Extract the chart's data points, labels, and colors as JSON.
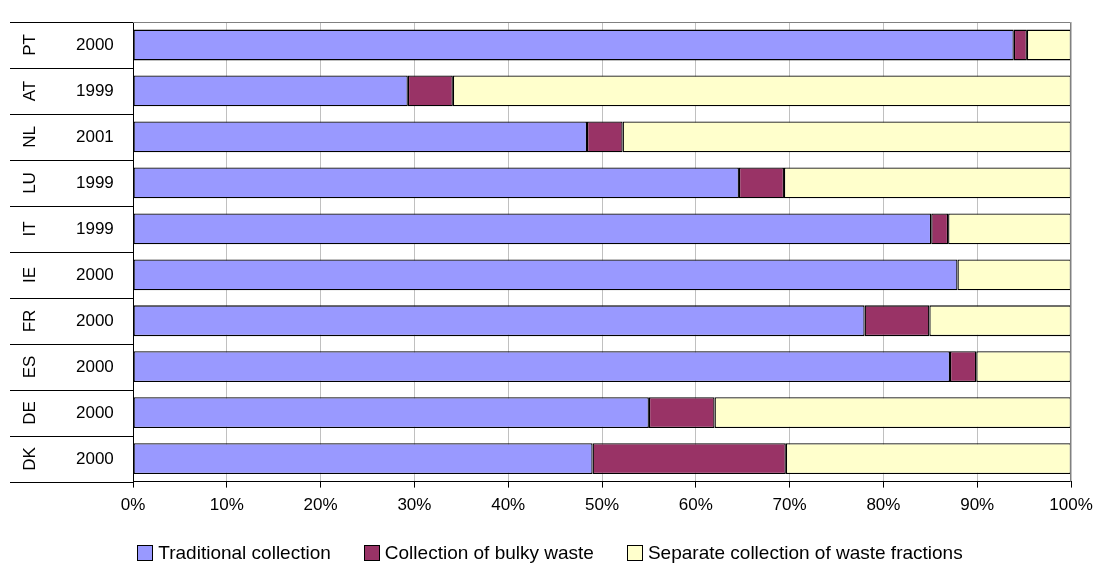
{
  "chart_data": {
    "type": "bar",
    "orientation": "horizontal",
    "stacked": true,
    "categories": [
      "PT 2000",
      "AT 1999",
      "NL 2001",
      "LU 1999",
      "IT 1999",
      "IE 2000",
      "FR 2000",
      "ES 2000",
      "DE 2000",
      "DK 2000"
    ],
    "series": [
      {
        "name": "Traditional collection",
        "color": "#9999ff",
        "values": [
          93.9,
          29.3,
          48.4,
          64.6,
          85.1,
          87.9,
          78.0,
          87.1,
          55.0,
          49.0
        ]
      },
      {
        "name": "Collection of bulky waste",
        "color": "#993366",
        "values": [
          1.4,
          4.8,
          3.8,
          4.8,
          1.8,
          0,
          6.9,
          2.8,
          7.0,
          20.6
        ]
      },
      {
        "name": "Separate collection of waste fractions",
        "color": "#ffffcc",
        "values": [
          4.7,
          65.9,
          47.8,
          30.6,
          13.1,
          12.1,
          15.1,
          10.1,
          38.0,
          30.4
        ]
      }
    ],
    "xlim": [
      0,
      100
    ],
    "xticks": [
      {
        "value": 0,
        "label": "0%"
      },
      {
        "value": 10,
        "label": "10%"
      },
      {
        "value": 20,
        "label": "20%"
      },
      {
        "value": 30,
        "label": "30%"
      },
      {
        "value": 40,
        "label": "40%"
      },
      {
        "value": 50,
        "label": "50%"
      },
      {
        "value": 60,
        "label": "60%"
      },
      {
        "value": 70,
        "label": "70%"
      },
      {
        "value": 80,
        "label": "80%"
      },
      {
        "value": 90,
        "label": "90%"
      },
      {
        "value": 100,
        "label": "100%"
      }
    ],
    "grid": "x",
    "legend": "bottom"
  }
}
